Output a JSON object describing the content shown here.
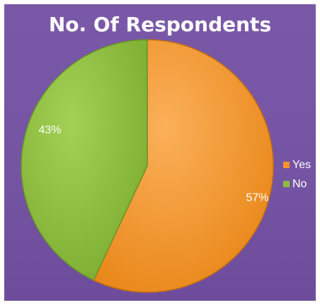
{
  "chart_data": {
    "type": "pie",
    "title": "No. Of Respondents",
    "categories": [
      "Yes",
      "No"
    ],
    "values": [
      57,
      43
    ],
    "data_labels": [
      "57%",
      "43%"
    ],
    "colors": [
      "#f5932c",
      "#8cbd3f"
    ],
    "legend_position": "right"
  }
}
